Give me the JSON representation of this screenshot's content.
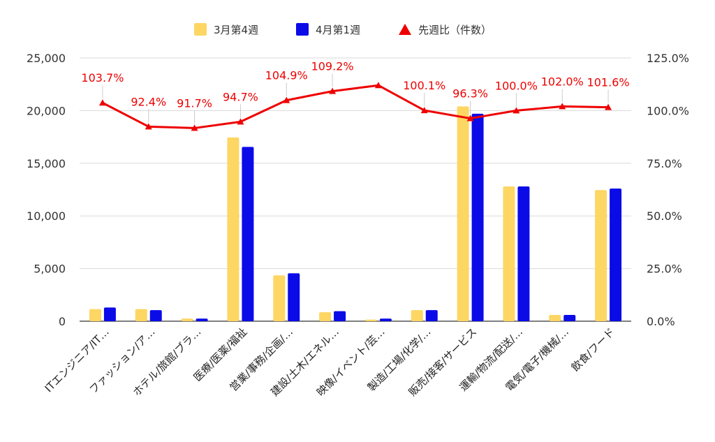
{
  "chart_data": {
    "type": "bar",
    "categories": [
      "ITエンジニア/IT…",
      "ファッション/ア…",
      "ホテル/旅館/ブラ…",
      "医療/医薬/福祉",
      "営業/事務/企画/…",
      "建設/土木/エネル…",
      "映像/イベント/芸…",
      "製造/工場/化学/…",
      "販売/接客/サービス",
      "運輸/物流/配送/…",
      "電気/電子/機械/…",
      "飲食/フード"
    ],
    "series": [
      {
        "name": "3月第4週",
        "type": "bar",
        "axis": "left",
        "color": "#FDD663",
        "values": [
          1150,
          1150,
          250,
          17450,
          4350,
          850,
          150,
          1050,
          20400,
          12800,
          600,
          12450
        ]
      },
      {
        "name": "4月第1週",
        "type": "bar",
        "axis": "left",
        "color": "#0B0BE8",
        "values": [
          1300,
          1050,
          250,
          16550,
          4550,
          950,
          250,
          1050,
          19700,
          12800,
          600,
          12600
        ]
      },
      {
        "name": "先週比（件数）",
        "type": "line",
        "axis": "right",
        "color": "#EE0000",
        "marker": "triangle",
        "values": [
          103.7,
          92.4,
          91.7,
          94.7,
          104.9,
          109.2,
          112.0,
          100.1,
          96.3,
          100.0,
          102.0,
          101.6
        ],
        "labels": [
          "103.7%",
          "92.4%",
          "91.7%",
          "94.7%",
          "104.9%",
          "109.2%",
          "",
          "100.1%",
          "96.3%",
          "100.0%",
          "102.0%",
          "101.6%"
        ]
      }
    ],
    "left_axis": {
      "ylim": [
        0,
        25000
      ],
      "ticks": [
        "0",
        "5,000",
        "10,000",
        "15,000",
        "20,000",
        "25,000"
      ],
      "tick_values": [
        0,
        5000,
        10000,
        15000,
        20000,
        25000
      ]
    },
    "right_axis": {
      "ylim": [
        0,
        125
      ],
      "ticks": [
        "0.0%",
        "25.0%",
        "50.0%",
        "75.0%",
        "100.0%",
        "125.0%"
      ],
      "tick_values": [
        0,
        25,
        50,
        75,
        100,
        125
      ]
    },
    "legend_position": "top",
    "grid": "horizontal"
  }
}
